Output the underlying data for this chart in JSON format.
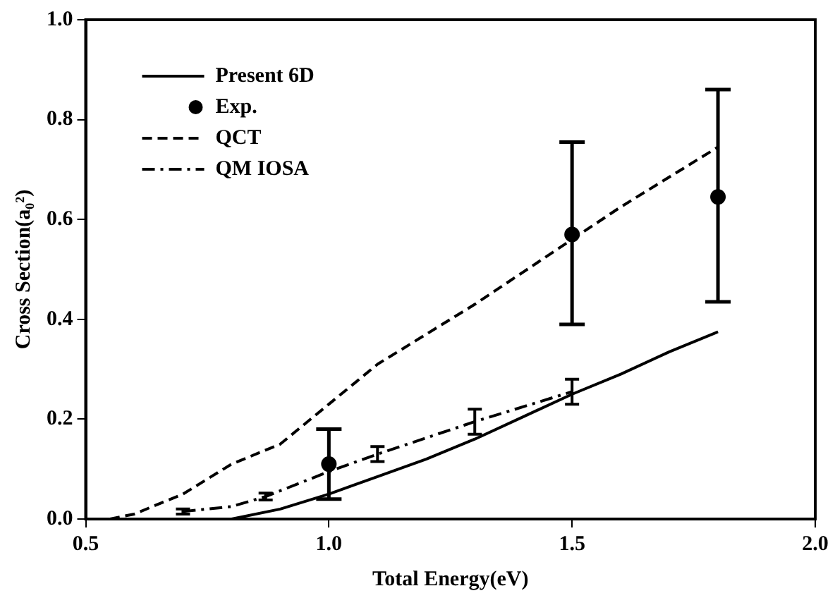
{
  "chart_data": {
    "type": "line",
    "xlabel": "Total Energy(eV)",
    "ylabel": "Cross Section(a₀²)",
    "xlim": [
      0.5,
      2.0
    ],
    "ylim": [
      0,
      1.0
    ],
    "xticks": [
      {
        "value": 0.5,
        "label": "0.5"
      },
      {
        "value": 1,
        "label": "1.0"
      },
      {
        "value": 1.5,
        "label": "1.5"
      },
      {
        "value": 2,
        "label": "2.0"
      }
    ],
    "yticks": [
      {
        "value": 0,
        "label": "0.0"
      },
      {
        "value": 0.2,
        "label": "0.2"
      },
      {
        "value": 0.4,
        "label": "0.4"
      },
      {
        "value": 0.6,
        "label": "0.6"
      },
      {
        "value": 0.8,
        "label": "0.8"
      },
      {
        "value": 1,
        "label": "1.0"
      }
    ],
    "grid": false,
    "legend": "top left",
    "series": [
      {
        "name": "Present 6D",
        "color": "#000000",
        "line_style": "solid",
        "marker": "none",
        "x": [
          0.8,
          0.9,
          1.0,
          1.1,
          1.2,
          1.3,
          1.4,
          1.5,
          1.6,
          1.7,
          1.8
        ],
        "values": [
          0,
          0.02,
          0.05,
          0.085,
          0.12,
          0.16,
          0.205,
          0.25,
          0.29,
          0.335,
          0.375
        ]
      },
      {
        "name": "Exp.",
        "type": "scatter",
        "color": "#000000",
        "marker": "circle",
        "x": [
          1.0,
          1.5,
          1.8
        ],
        "values": [
          0.11,
          0.57,
          0.645
        ],
        "errors": [
          [
            0.04,
            0.18
          ],
          [
            0.39,
            0.755
          ],
          [
            0.435,
            0.86
          ]
        ]
      },
      {
        "name": "QCT",
        "color": "#000000",
        "line_style": "dashed",
        "marker": "none",
        "x": [
          0.55,
          0.6,
          0.7,
          0.8,
          0.9,
          1.0,
          1.1,
          1.2,
          1.3,
          1.4,
          1.5,
          1.6,
          1.7,
          1.8
        ],
        "values": [
          0,
          0.01,
          0.05,
          0.11,
          0.15,
          0.23,
          0.31,
          0.37,
          0.43,
          0.495,
          0.56,
          0.625,
          0.685,
          0.745
        ]
      },
      {
        "name": "QM IOSA",
        "color": "#000000",
        "line_style": "dashdot",
        "marker": "none",
        "x": [
          0.7,
          0.8,
          0.87,
          1.0,
          1.1,
          1.3,
          1.5
        ],
        "values": [
          0.015,
          0.025,
          0.045,
          0.095,
          0.13,
          0.195,
          0.255
        ],
        "errors": [
          0.005,
          null,
          0.007,
          null,
          0.015,
          0.025,
          0.025
        ]
      }
    ]
  }
}
